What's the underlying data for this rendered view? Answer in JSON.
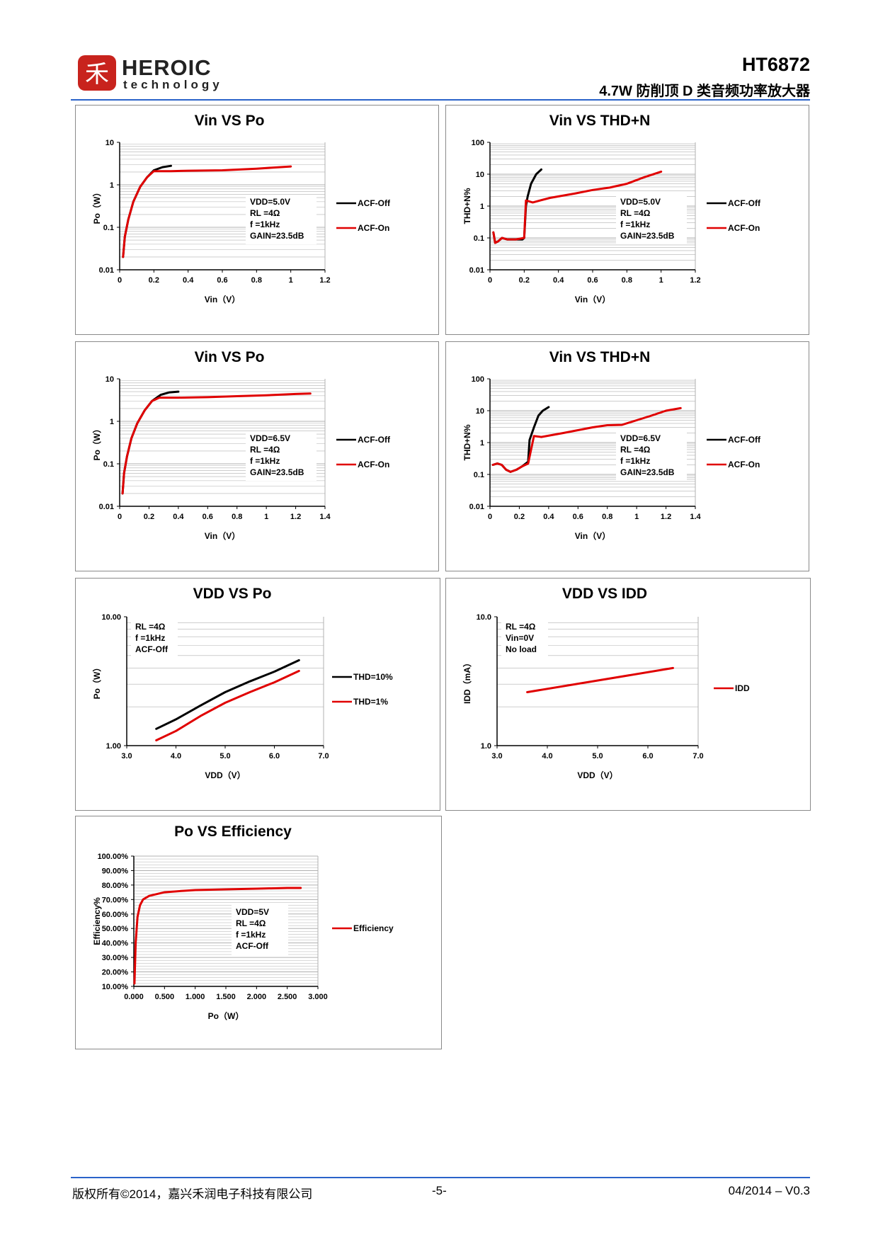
{
  "header": {
    "brand_line1": "HEROIC",
    "brand_line2": "technology",
    "part_number": "HT6872",
    "subtitle": "4.7W 防削顶 D 类音频功率放大器",
    "accent": "#2a63c9",
    "logo_color": "#c8231d"
  },
  "footer": {
    "copyright": "版权所有©2014，嘉兴禾润电子科技有限公司",
    "page": "-5-",
    "version": "04/2014 – V0.3"
  },
  "colors": {
    "red": "#e00000",
    "black": "#000000",
    "grid": "#b0b0b0"
  },
  "panels": [
    {
      "title": "Vin VS Po",
      "xlabel": "Vin（V）",
      "ylabel": "Po（W）",
      "x_ticks": [
        "0",
        "0.2",
        "0.4",
        "0.6",
        "0.8",
        "1",
        "1.2"
      ],
      "y_ticks": [
        "0.01",
        "0.1",
        "1",
        "10"
      ],
      "notes": [
        "VDD=5.0V",
        "RL =4Ω",
        "f =1kHz",
        "GAIN=23.5dB"
      ],
      "legend": [
        "ACF-Off",
        "ACF-On"
      ],
      "chart_data": {
        "type": "line",
        "xscale": "linear",
        "yscale": "log",
        "xlim": [
          0,
          1.2
        ],
        "ylim": [
          0.01,
          10
        ],
        "series": [
          {
            "name": "ACF-Off",
            "color": "black",
            "points": [
              [
                0.02,
                0.02
              ],
              [
                0.03,
                0.06
              ],
              [
                0.05,
                0.15
              ],
              [
                0.08,
                0.4
              ],
              [
                0.12,
                0.9
              ],
              [
                0.16,
                1.5
              ],
              [
                0.2,
                2.2
              ],
              [
                0.25,
                2.6
              ],
              [
                0.3,
                2.8
              ]
            ]
          },
          {
            "name": "ACF-On",
            "color": "red",
            "points": [
              [
                0.02,
                0.02
              ],
              [
                0.03,
                0.06
              ],
              [
                0.05,
                0.15
              ],
              [
                0.08,
                0.4
              ],
              [
                0.12,
                0.9
              ],
              [
                0.16,
                1.5
              ],
              [
                0.2,
                2.1
              ],
              [
                0.3,
                2.1
              ],
              [
                0.4,
                2.15
              ],
              [
                0.6,
                2.2
              ],
              [
                0.8,
                2.4
              ],
              [
                1.0,
                2.7
              ]
            ]
          }
        ]
      }
    },
    {
      "title": "Vin VS THD+N",
      "xlabel": "Vin（V）",
      "ylabel": "THD+N%",
      "x_ticks": [
        "0",
        "0.2",
        "0.4",
        "0.6",
        "0.8",
        "1",
        "1.2"
      ],
      "y_ticks": [
        "0.01",
        "0.1",
        "1",
        "10",
        "100"
      ],
      "notes": [
        "VDD=5.0V",
        "RL =4Ω",
        "f =1kHz",
        "GAIN=23.5dB"
      ],
      "legend": [
        "ACF-Off",
        "ACF-On"
      ],
      "chart_data": {
        "type": "line",
        "xscale": "linear",
        "yscale": "log",
        "xlim": [
          0,
          1.2
        ],
        "ylim": [
          0.01,
          100
        ],
        "series": [
          {
            "name": "ACF-Off",
            "color": "black",
            "points": [
              [
                0.02,
                0.15
              ],
              [
                0.03,
                0.07
              ],
              [
                0.05,
                0.08
              ],
              [
                0.07,
                0.1
              ],
              [
                0.1,
                0.09
              ],
              [
                0.15,
                0.09
              ],
              [
                0.19,
                0.09
              ],
              [
                0.2,
                0.1
              ],
              [
                0.21,
                1.0
              ],
              [
                0.22,
                2.0
              ],
              [
                0.24,
                5.0
              ],
              [
                0.27,
                10
              ],
              [
                0.3,
                14
              ]
            ]
          },
          {
            "name": "ACF-On",
            "color": "red",
            "points": [
              [
                0.02,
                0.15
              ],
              [
                0.03,
                0.07
              ],
              [
                0.05,
                0.08
              ],
              [
                0.07,
                0.1
              ],
              [
                0.1,
                0.09
              ],
              [
                0.15,
                0.09
              ],
              [
                0.2,
                0.1
              ],
              [
                0.21,
                1.5
              ],
              [
                0.25,
                1.3
              ],
              [
                0.35,
                1.8
              ],
              [
                0.5,
                2.5
              ],
              [
                0.6,
                3.2
              ],
              [
                0.7,
                3.8
              ],
              [
                0.8,
                5
              ],
              [
                0.9,
                8
              ],
              [
                1.0,
                12
              ]
            ]
          }
        ]
      }
    },
    {
      "title": "Vin VS Po",
      "xlabel": "Vin（V）",
      "ylabel": "Po（W）",
      "x_ticks": [
        "0",
        "0.2",
        "0.4",
        "0.6",
        "0.8",
        "1",
        "1.2",
        "1.4"
      ],
      "y_ticks": [
        "0.01",
        "0.1",
        "1",
        "10"
      ],
      "notes": [
        "VDD=6.5V",
        "RL =4Ω",
        "f =1kHz",
        "GAIN=23.5dB"
      ],
      "legend": [
        "ACF-Off",
        "ACF-On"
      ],
      "chart_data": {
        "type": "line",
        "xscale": "linear",
        "yscale": "log",
        "xlim": [
          0,
          1.4
        ],
        "ylim": [
          0.01,
          10
        ],
        "series": [
          {
            "name": "ACF-Off",
            "color": "black",
            "points": [
              [
                0.02,
                0.02
              ],
              [
                0.03,
                0.06
              ],
              [
                0.05,
                0.15
              ],
              [
                0.08,
                0.4
              ],
              [
                0.12,
                0.9
              ],
              [
                0.17,
                1.8
              ],
              [
                0.22,
                3.0
              ],
              [
                0.28,
                4.2
              ],
              [
                0.34,
                4.8
              ],
              [
                0.4,
                5.0
              ]
            ]
          },
          {
            "name": "ACF-On",
            "color": "red",
            "points": [
              [
                0.02,
                0.02
              ],
              [
                0.03,
                0.06
              ],
              [
                0.05,
                0.15
              ],
              [
                0.08,
                0.4
              ],
              [
                0.12,
                0.9
              ],
              [
                0.17,
                1.8
              ],
              [
                0.22,
                3.0
              ],
              [
                0.27,
                3.6
              ],
              [
                0.4,
                3.6
              ],
              [
                0.6,
                3.7
              ],
              [
                0.8,
                3.9
              ],
              [
                1.0,
                4.1
              ],
              [
                1.2,
                4.4
              ],
              [
                1.3,
                4.5
              ]
            ]
          }
        ]
      }
    },
    {
      "title": "Vin VS THD+N",
      "xlabel": "Vin（V）",
      "ylabel": "THD+N%",
      "x_ticks": [
        "0",
        "0.2",
        "0.4",
        "0.6",
        "0.8",
        "1",
        "1.2",
        "1.4"
      ],
      "y_ticks": [
        "0.01",
        "0.1",
        "1",
        "10",
        "100"
      ],
      "notes": [
        "VDD=6.5V",
        "RL =4Ω",
        "f =1kHz",
        "GAIN=23.5dB"
      ],
      "legend": [
        "ACF-Off",
        "ACF-On"
      ],
      "chart_data": {
        "type": "line",
        "xscale": "linear",
        "yscale": "log",
        "xlim": [
          0,
          1.4
        ],
        "ylim": [
          0.01,
          100
        ],
        "series": [
          {
            "name": "ACF-Off",
            "color": "black",
            "points": [
              [
                0.02,
                0.2
              ],
              [
                0.05,
                0.22
              ],
              [
                0.08,
                0.2
              ],
              [
                0.11,
                0.14
              ],
              [
                0.14,
                0.12
              ],
              [
                0.18,
                0.14
              ],
              [
                0.22,
                0.18
              ],
              [
                0.26,
                0.25
              ],
              [
                0.27,
                1.2
              ],
              [
                0.3,
                3.0
              ],
              [
                0.33,
                7
              ],
              [
                0.36,
                10
              ],
              [
                0.4,
                13
              ]
            ]
          },
          {
            "name": "ACF-On",
            "color": "red",
            "points": [
              [
                0.02,
                0.2
              ],
              [
                0.05,
                0.22
              ],
              [
                0.08,
                0.2
              ],
              [
                0.11,
                0.14
              ],
              [
                0.14,
                0.12
              ],
              [
                0.18,
                0.14
              ],
              [
                0.22,
                0.18
              ],
              [
                0.26,
                0.22
              ],
              [
                0.3,
                1.6
              ],
              [
                0.35,
                1.5
              ],
              [
                0.5,
                2.0
              ],
              [
                0.7,
                3.0
              ],
              [
                0.8,
                3.5
              ],
              [
                0.9,
                3.6
              ],
              [
                1.0,
                5.0
              ],
              [
                1.1,
                7
              ],
              [
                1.2,
                10
              ],
              [
                1.3,
                12
              ]
            ]
          }
        ]
      }
    },
    {
      "title": "VDD VS Po",
      "xlabel": "VDD（V）",
      "ylabel": "Po（W）",
      "x_ticks": [
        "3.0",
        "4.0",
        "5.0",
        "6.0",
        "7.0"
      ],
      "y_ticks": [
        "1.00",
        "10.00"
      ],
      "notes": [
        "RL =4Ω",
        "f =1kHz",
        "ACF-Off"
      ],
      "legend": [
        "THD=10%",
        "THD=1%"
      ],
      "chart_data": {
        "type": "line",
        "xscale": "linear",
        "yscale": "log",
        "xlim": [
          3.0,
          7.0
        ],
        "ylim": [
          1,
          10
        ],
        "series": [
          {
            "name": "THD=10%",
            "color": "black",
            "points": [
              [
                3.6,
                1.35
              ],
              [
                4.0,
                1.6
              ],
              [
                4.5,
                2.05
              ],
              [
                5.0,
                2.6
              ],
              [
                5.5,
                3.15
              ],
              [
                6.0,
                3.75
              ],
              [
                6.5,
                4.6
              ]
            ]
          },
          {
            "name": "THD=1%",
            "color": "red",
            "points": [
              [
                3.6,
                1.1
              ],
              [
                4.0,
                1.3
              ],
              [
                4.5,
                1.7
              ],
              [
                5.0,
                2.15
              ],
              [
                5.5,
                2.6
              ],
              [
                6.0,
                3.1
              ],
              [
                6.5,
                3.8
              ]
            ]
          }
        ]
      }
    },
    {
      "title": "VDD VS IDD",
      "xlabel": "VDD（V）",
      "ylabel": "IDD（mA）",
      "x_ticks": [
        "3.0",
        "4.0",
        "5.0",
        "6.0",
        "7.0"
      ],
      "y_ticks": [
        "1.0",
        "10.0"
      ],
      "notes": [
        "RL =4Ω",
        "Vin=0V",
        "No load"
      ],
      "legend": [
        "IDD"
      ],
      "chart_data": {
        "type": "line",
        "xscale": "linear",
        "yscale": "log",
        "xlim": [
          3.0,
          7.0
        ],
        "ylim": [
          1,
          10
        ],
        "series": [
          {
            "name": "IDD",
            "color": "red",
            "points": [
              [
                3.6,
                2.6
              ],
              [
                6.5,
                4.0
              ]
            ]
          }
        ]
      }
    },
    {
      "title": "Po VS Efficiency",
      "xlabel": "Po（W）",
      "ylabel": "Efficiency%",
      "x_ticks": [
        "0.000",
        "0.500",
        "1.000",
        "1.500",
        "2.000",
        "2.500",
        "3.000"
      ],
      "y_ticks": [
        "10.00%",
        "20.00%",
        "30.00%",
        "40.00%",
        "50.00%",
        "60.00%",
        "70.00%",
        "80.00%",
        "90.00%",
        "100.00%"
      ],
      "notes": [
        "VDD=5V",
        "RL =4Ω",
        "f =1kHz",
        "ACF-Off"
      ],
      "legend": [
        "Efficiency"
      ],
      "chart_data": {
        "type": "line",
        "xscale": "linear",
        "yscale": "linear",
        "xlim": [
          0,
          3.0
        ],
        "ylim": [
          10,
          100
        ],
        "series": [
          {
            "name": "Efficiency",
            "color": "red",
            "points": [
              [
                0.01,
                12
              ],
              [
                0.03,
                40
              ],
              [
                0.06,
                58
              ],
              [
                0.1,
                66
              ],
              [
                0.15,
                70
              ],
              [
                0.25,
                72.5
              ],
              [
                0.5,
                75
              ],
              [
                0.8,
                76
              ],
              [
                1.0,
                76.5
              ],
              [
                1.5,
                77
              ],
              [
                2.0,
                77.5
              ],
              [
                2.5,
                78
              ],
              [
                2.72,
                78
              ]
            ]
          }
        ]
      }
    }
  ]
}
